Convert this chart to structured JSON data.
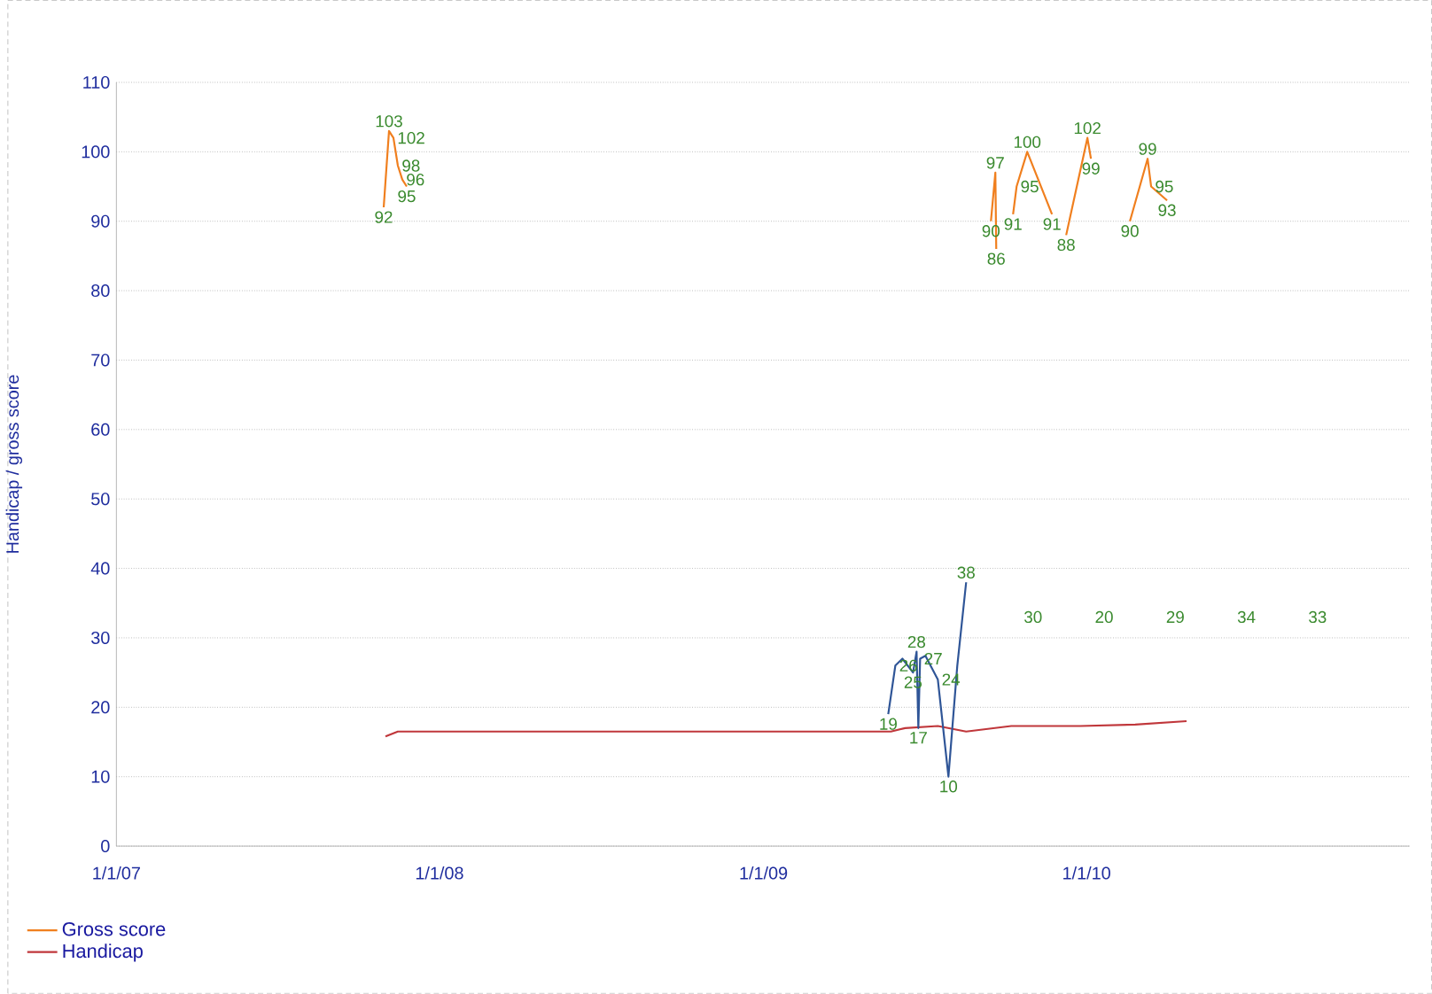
{
  "chart_data": {
    "type": "line",
    "ylabel": "Handicap / gross score",
    "xlim": [
      "2007-01-01",
      "2011-01-01"
    ],
    "xticks": [
      {
        "value": "2007-01-01",
        "label": "1/1/07"
      },
      {
        "value": "2008-01-01",
        "label": "1/1/08"
      },
      {
        "value": "2009-01-01",
        "label": "1/1/09"
      },
      {
        "value": "2010-01-01",
        "label": "1/1/10"
      }
    ],
    "ylim": [
      0,
      110
    ],
    "yticks": [
      0,
      10,
      20,
      30,
      40,
      50,
      60,
      70,
      80,
      90,
      100,
      110
    ],
    "grid": "y",
    "legend": "bottom left",
    "marker": "none",
    "line_style": "solid",
    "series": [
      {
        "name": "Gross score",
        "color": "#f07f1e",
        "x": [
          "2007-10-30",
          "2007-11-05",
          "2007-11-10",
          "2007-11-15",
          "2007-11-20",
          "2007-11-25",
          "2008-06-01",
          "2009-09-15",
          "2009-09-20",
          "2009-09-21",
          "2009-10-01",
          "2009-10-10",
          "2009-10-14",
          "2009-10-26",
          "2009-11-23",
          "2009-12-01",
          "2009-12-09",
          "2010-01-02",
          "2010-01-06",
          "2010-01-20",
          "2010-02-19",
          "2010-03-11",
          "2010-03-15",
          "2010-04-02"
        ],
        "values": [
          92,
          103,
          102,
          98,
          96,
          95,
          null,
          90,
          97,
          86,
          null,
          91,
          95,
          100,
          91,
          null,
          88,
          102,
          99,
          null,
          90,
          99,
          95,
          93
        ],
        "value_labels": [
          "92",
          "103",
          "102",
          "98",
          "96",
          "95",
          null,
          "90",
          "97",
          "86",
          null,
          "91",
          "95",
          "100",
          "91",
          null,
          "88",
          "102",
          "99",
          null,
          "90",
          "99",
          "95",
          "93"
        ]
      },
      {
        "name": "Handicap",
        "color": "#c0373b",
        "x": [
          "2007-11-01",
          "2007-11-15",
          "2009-05-25",
          "2009-06-10",
          "2009-07-17",
          "2009-08-18",
          "2009-10-08",
          "2009-12-25",
          "2010-02-25",
          "2010-04-24"
        ],
        "values": [
          15.8,
          16.5,
          16.5,
          17,
          17.3,
          16.5,
          17.3,
          17.3,
          17.5,
          18
        ]
      },
      {
        "color": "#2f5597",
        "x": [
          "2009-05-22",
          "2009-05-30",
          "2009-06-07",
          "2009-06-19",
          "2009-06-23",
          "2009-06-25",
          "2009-06-27",
          "2009-07-03",
          "2009-07-17",
          "2009-07-29",
          "2009-08-08",
          "2009-08-18"
        ],
        "values": [
          19,
          26,
          27,
          25,
          28,
          17,
          27,
          27.4,
          24,
          10,
          26,
          38
        ],
        "value_labels": [
          "19",
          "26",
          null,
          "25",
          "28",
          "17",
          "27",
          null,
          "24",
          "10",
          null,
          "38"
        ]
      }
    ],
    "annotations": [
      "30",
      "20",
      "29",
      "34",
      "33"
    ]
  }
}
